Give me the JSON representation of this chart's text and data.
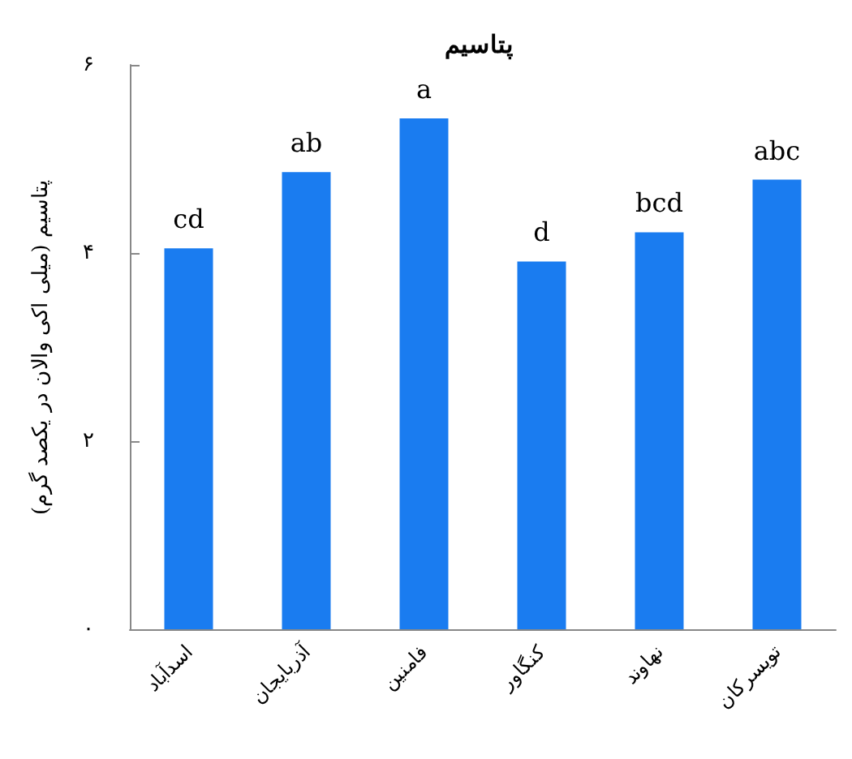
{
  "chart_data": {
    "type": "bar",
    "title": "پتاسیم",
    "ylabel": "پتاسیم (میلی اکی والان در یکصد گرم)",
    "categories": [
      "اسدآباد",
      "آذربایجان",
      "فامنین",
      "کنگاور",
      "نهاوند",
      "تویسرکان"
    ],
    "values": [
      4.05,
      4.86,
      5.43,
      3.91,
      4.22,
      4.78
    ],
    "value_labels": [
      "cd",
      "ab",
      "a",
      "d",
      "bcd",
      "abc"
    ],
    "color": "#1a7cf0",
    "ylim": [
      0,
      6
    ],
    "yticks": [
      {
        "value": 0,
        "label": "۰"
      },
      {
        "value": 2,
        "label": "۲"
      },
      {
        "value": 4,
        "label": "۴"
      },
      {
        "value": 6,
        "label": "۶"
      }
    ],
    "grid": false
  }
}
